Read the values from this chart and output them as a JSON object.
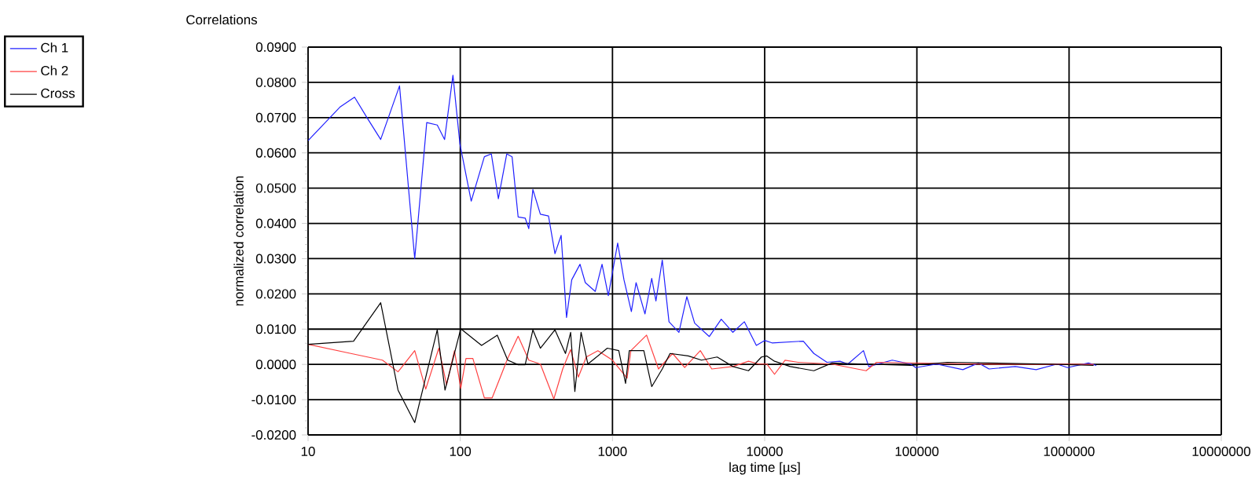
{
  "chart_data": {
    "type": "line",
    "title": "Correlations",
    "xlabel": "lag time [µs]",
    "ylabel": "normalized correlation",
    "log": "x",
    "grid": true,
    "legend": "top left",
    "marker": "none",
    "line_style": "solid",
    "xlim": [
      10,
      10000000
    ],
    "xticks": [
      10,
      100,
      1000,
      10000,
      100000,
      1000000,
      10000000
    ],
    "ylim": [
      -0.02,
      0.09
    ],
    "yticks": [
      {
        "value": -0.02,
        "label": "-0.0200"
      },
      {
        "value": -0.01,
        "label": "-0.0100"
      },
      {
        "value": 0,
        "label": "0.0000"
      },
      {
        "value": 0.01,
        "label": "0.0100"
      },
      {
        "value": 0.02,
        "label": "0.0200"
      },
      {
        "value": 0.03,
        "label": "0.0300"
      },
      {
        "value": 0.04,
        "label": "0.0400"
      },
      {
        "value": 0.05,
        "label": "0.0500"
      },
      {
        "value": 0.06,
        "label": "0.0600"
      },
      {
        "value": 0.07,
        "label": "0.0700"
      },
      {
        "value": 0.08,
        "label": "0.0800"
      },
      {
        "value": 0.09,
        "label": "0.0900"
      }
    ],
    "series": [
      {
        "name": "Ch 1",
        "color": "#2020ff",
        "x": [
          10,
          16.3,
          20.2,
          24.3,
          30,
          39.9,
          50.2,
          60.2,
          70.6,
          78.9,
          89.5,
          99.4,
          118,
          144,
          160,
          178,
          202,
          219,
          240,
          267,
          282,
          300,
          336,
          380,
          419,
          460,
          499,
          540,
          612,
          663,
          771,
          854,
          939,
          1082,
          1190,
          1331,
          1429,
          1635,
          1811,
          1930,
          2124,
          2352,
          2733,
          3080,
          3467,
          4329,
          5184,
          6180,
          7351,
          8816,
          10000,
          11170,
          17950,
          21040,
          25650,
          31260,
          35190,
          44570,
          48270,
          68900,
          91000,
          98400,
          135000,
          200600,
          254000,
          298000,
          443000,
          608000,
          834000,
          977000,
          1340000,
          1510000
        ],
        "values": [
          0.0635,
          0.0731,
          0.0758,
          0.0701,
          0.0638,
          0.079,
          0.03,
          0.0686,
          0.0679,
          0.0638,
          0.082,
          0.0626,
          0.0463,
          0.0589,
          0.0597,
          0.047,
          0.0597,
          0.0589,
          0.0418,
          0.0415,
          0.0385,
          0.0496,
          0.0426,
          0.0421,
          0.0314,
          0.0366,
          0.0133,
          0.024,
          0.0284,
          0.0232,
          0.0207,
          0.0284,
          0.0195,
          0.0344,
          0.024,
          0.015,
          0.0232,
          0.0143,
          0.0244,
          0.018,
          0.0296,
          0.0121,
          0.0091,
          0.0192,
          0.0117,
          0.0079,
          0.0128,
          0.0091,
          0.0121,
          0.0054,
          0.0068,
          0.0061,
          0.0066,
          0.0031,
          0.0006,
          0.0009,
          0.0001,
          0.0039,
          -0.0006,
          0.0012,
          0.0001,
          -0.0009,
          0.0001,
          -0.0015,
          0.0004,
          -0.0013,
          -0.0006,
          -0.0015,
          0.0001,
          -0.0009,
          0.0004,
          -0.0003
        ]
      },
      {
        "name": "Ch 2",
        "color": "#ff4040",
        "x": [
          10,
          19.1,
          30.8,
          39,
          50.2,
          59.3,
          72.3,
          81.3,
          91.6,
          100.7,
          109,
          121,
          144,
          162,
          205,
          240,
          282,
          336,
          412,
          471,
          531,
          597,
          673,
          802,
          1000,
          1247,
          1321,
          1675,
          2006,
          2483,
          2981,
          3778,
          4493,
          6180,
          7830,
          9170,
          10330,
          11610,
          13610,
          16600,
          27700,
          46400,
          54300,
          91000,
          254000,
          1450000
        ],
        "values": [
          0.0057,
          0.0031,
          0.0012,
          -0.0021,
          0.0039,
          -0.007,
          0.0046,
          -0.0058,
          0.0039,
          -0.0068,
          0.0017,
          0.0017,
          -0.0095,
          -0.0095,
          0.0017,
          0.008,
          0.0012,
          0.0001,
          -0.0098,
          -0.0013,
          0.0042,
          -0.0036,
          0.0021,
          0.0039,
          0.0012,
          -0.0039,
          0.0039,
          0.0083,
          -0.0013,
          0.0031,
          -0.0009,
          0.0039,
          -0.0013,
          -0.0006,
          0.0009,
          0.0001,
          0.0001,
          -0.0028,
          0.0012,
          0.0006,
          0.0001,
          -0.0018,
          0.0006,
          null,
          0.0001,
          0.0
        ]
      },
      {
        "name": "Cross",
        "color": "#000000",
        "x": [
          10,
          19.9,
          30,
          39,
          50.2,
          70.6,
          79.4,
          100.7,
          138,
          175,
          205,
          240,
          267,
          300,
          336,
          419,
          491,
          531,
          566,
          622,
          689,
          925,
          1100,
          1219,
          1290,
          1607,
          1811,
          2124,
          2389,
          3148,
          3845,
          4873,
          6180,
          7830,
          9530,
          10330,
          11610,
          14720,
          21040,
          27700,
          44570,
          91000,
          158000,
          713000,
          1450000
        ],
        "values": [
          0.0057,
          0.0066,
          0.0175,
          -0.0073,
          -0.0165,
          0.0098,
          -0.0073,
          0.0101,
          0.0054,
          0.0083,
          0.0012,
          -0.0001,
          -0.0001,
          0.0098,
          0.0046,
          0.0098,
          0.0031,
          0.0091,
          -0.0077,
          0.0091,
          0.0001,
          0.0046,
          0.0039,
          -0.0054,
          0.0039,
          0.0039,
          -0.0063,
          -0.0013,
          0.0031,
          0.0024,
          0.0012,
          0.0021,
          -0.0006,
          -0.0018,
          0.0021,
          0.0024,
          0.0009,
          -0.0006,
          -0.0018,
          0.0004,
          0.0001,
          -0.0003,
          0.0006,
          0.0001,
          -0.0003
        ]
      }
    ]
  }
}
